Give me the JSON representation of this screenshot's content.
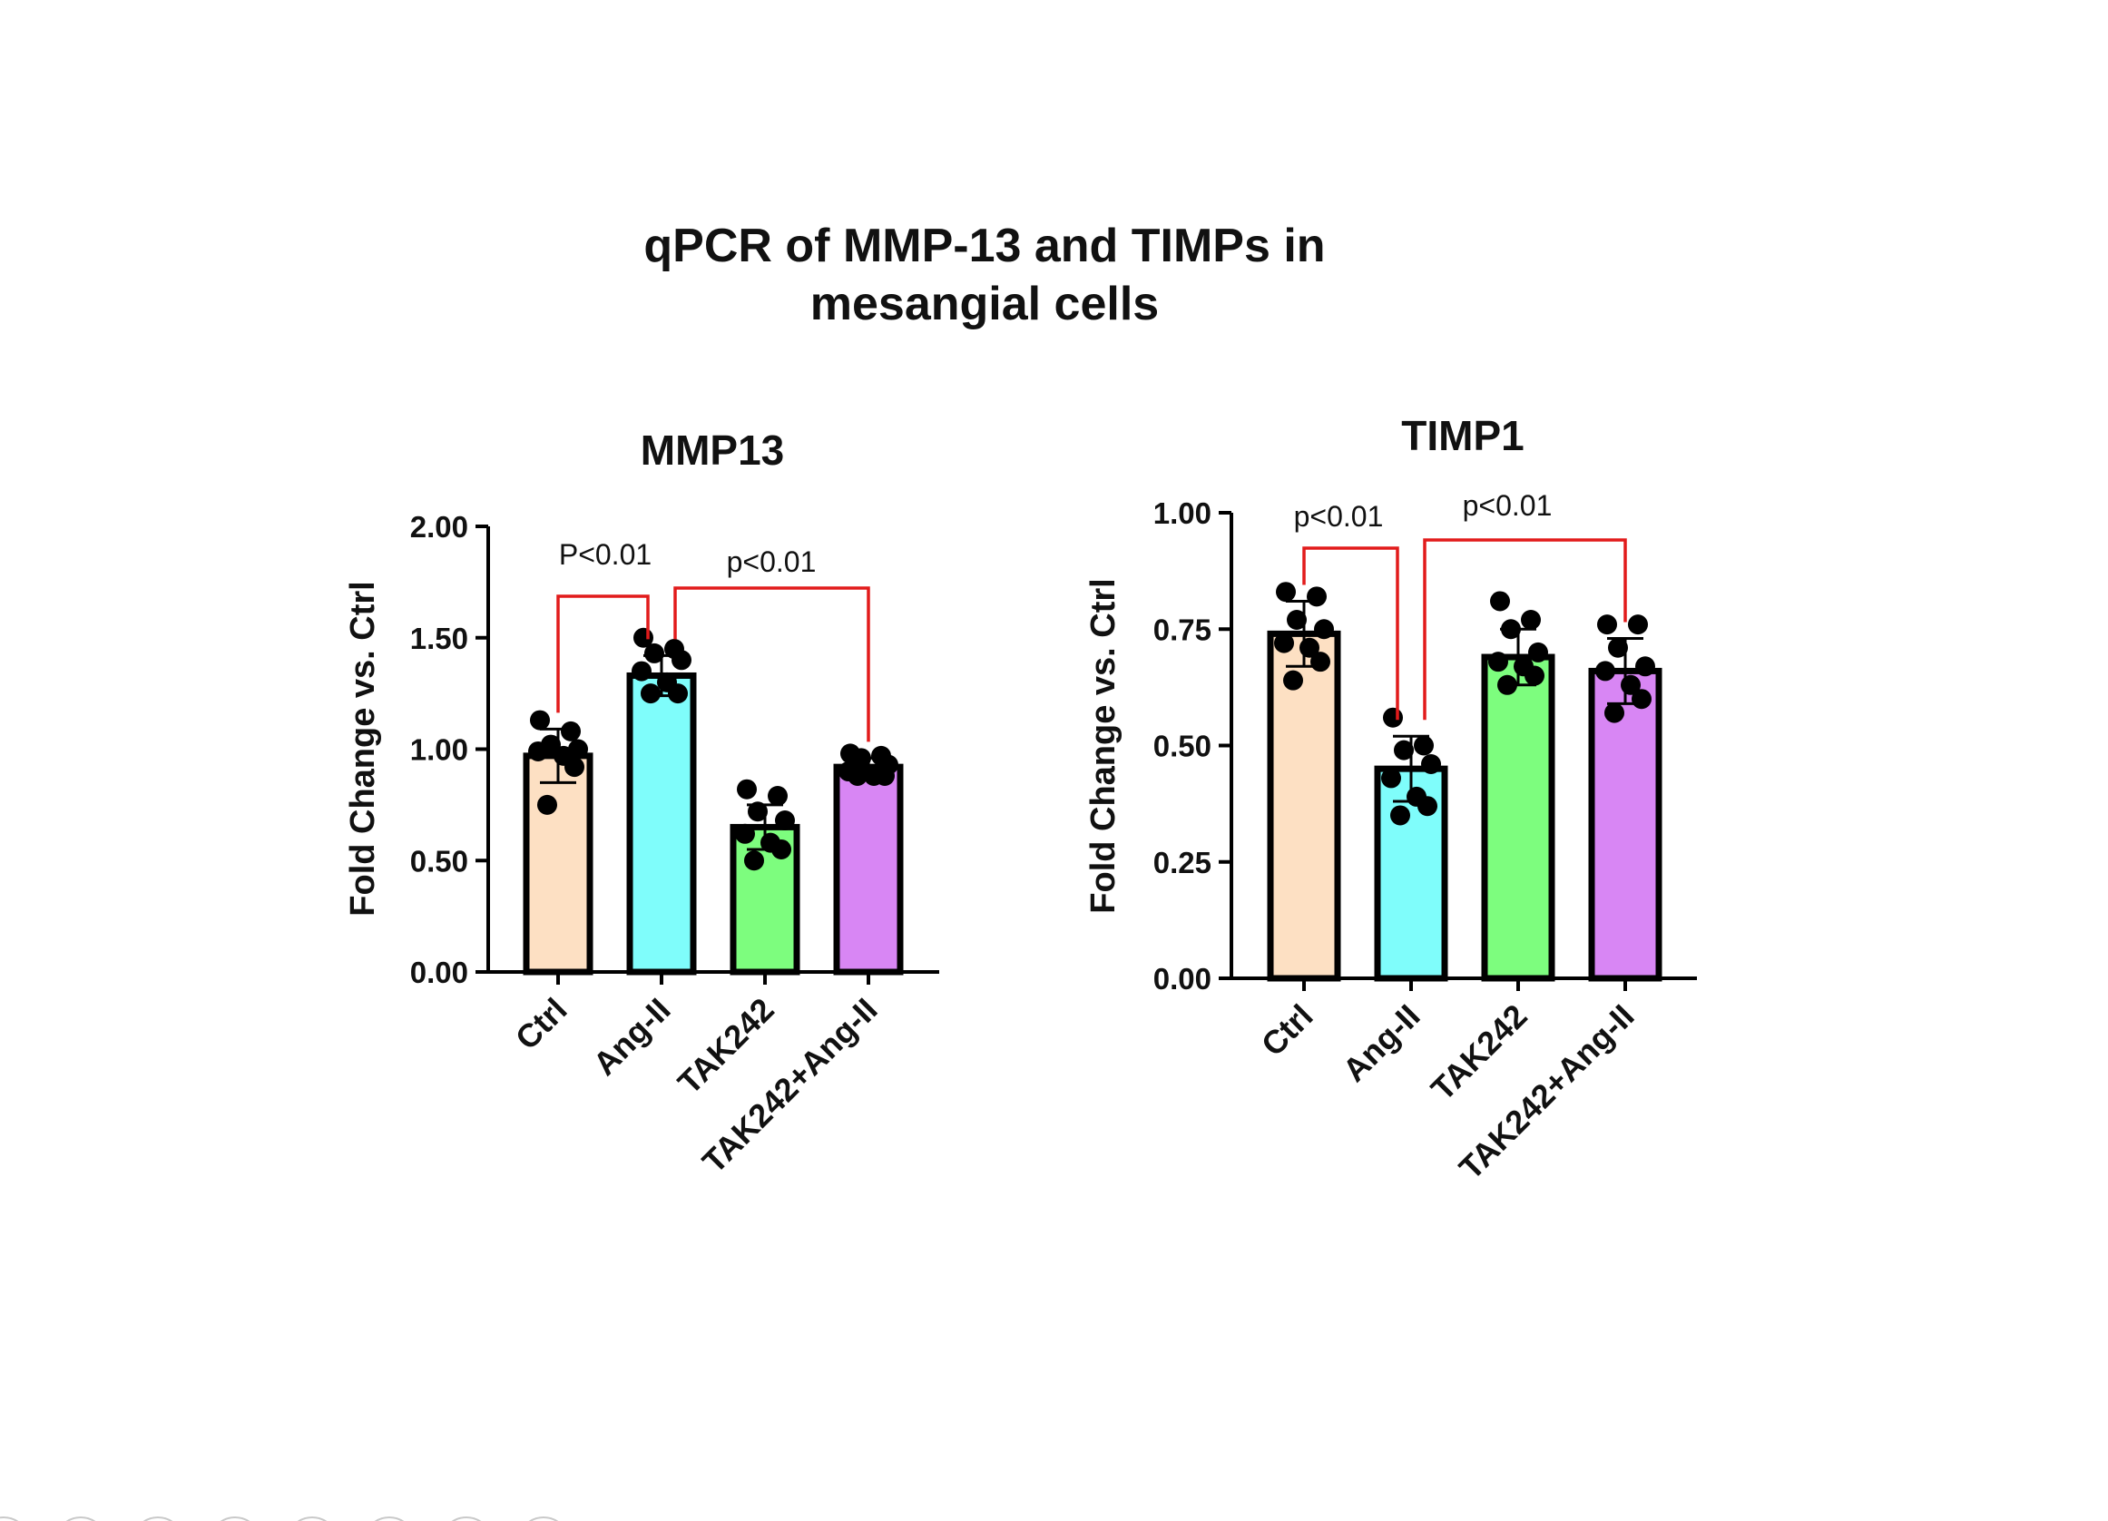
{
  "figure": {
    "title_line1": "qPCR of MMP-13 and TIMPs in",
    "title_line2": "mesangial cells"
  },
  "chart_data": [
    {
      "type": "bar",
      "title": "MMP13",
      "ylabel": "Fold Change vs. Ctrl",
      "xlabel": "",
      "categories": [
        "Ctrl",
        "Ang-II",
        "TAK242",
        "TAK242+Ang-II"
      ],
      "values": [
        0.97,
        1.33,
        0.65,
        0.92
      ],
      "errors": [
        0.12,
        0.09,
        0.1,
        0.04
      ],
      "points": [
        [
          1.13,
          1.08,
          1.02,
          1.0,
          0.99,
          0.97,
          0.92,
          0.75
        ],
        [
          1.5,
          1.45,
          1.43,
          1.4,
          1.35,
          1.3,
          1.25,
          1.25
        ],
        [
          0.82,
          0.79,
          0.72,
          0.68,
          0.62,
          0.58,
          0.55,
          0.5
        ],
        [
          0.98,
          0.97,
          0.96,
          0.93,
          0.9,
          0.88,
          0.88,
          0.88
        ]
      ],
      "bar_colors": [
        "#fde0c3",
        "#7ffdfb",
        "#7dfd7e",
        "#d886f4"
      ],
      "ylim": [
        0,
        2.0
      ],
      "yticks": [
        "0.00",
        "0.50",
        "1.00",
        "1.50",
        "2.00"
      ],
      "significance": [
        {
          "from": 0,
          "to": 1,
          "label": "P<0.01"
        },
        {
          "from": 1,
          "to": 3,
          "label": "p<0.01"
        }
      ]
    },
    {
      "type": "bar",
      "title": "TIMP1",
      "ylabel": "Fold Change vs. Ctrl",
      "xlabel": "",
      "categories": [
        "Ctrl",
        "Ang-II",
        "TAK242",
        "TAK242+Ang-II"
      ],
      "values": [
        0.74,
        0.45,
        0.69,
        0.66
      ],
      "errors": [
        0.07,
        0.07,
        0.06,
        0.07
      ],
      "points": [
        [
          0.83,
          0.82,
          0.77,
          0.75,
          0.72,
          0.71,
          0.68,
          0.64
        ],
        [
          0.56,
          0.5,
          0.49,
          0.46,
          0.43,
          0.39,
          0.37,
          0.35
        ],
        [
          0.81,
          0.77,
          0.75,
          0.7,
          0.68,
          0.67,
          0.65,
          0.63
        ],
        [
          0.76,
          0.76,
          0.71,
          0.67,
          0.66,
          0.63,
          0.6,
          0.57
        ]
      ],
      "bar_colors": [
        "#fde0c3",
        "#7ffdfb",
        "#7dfd7e",
        "#d886f4"
      ],
      "ylim": [
        0,
        1.0
      ],
      "yticks": [
        "0.00",
        "0.25",
        "0.50",
        "0.75",
        "1.00"
      ],
      "significance": [
        {
          "from": 0,
          "to": 1,
          "label": "p<0.01"
        },
        {
          "from": 1,
          "to": 3,
          "label": "p<0.01"
        }
      ]
    }
  ]
}
